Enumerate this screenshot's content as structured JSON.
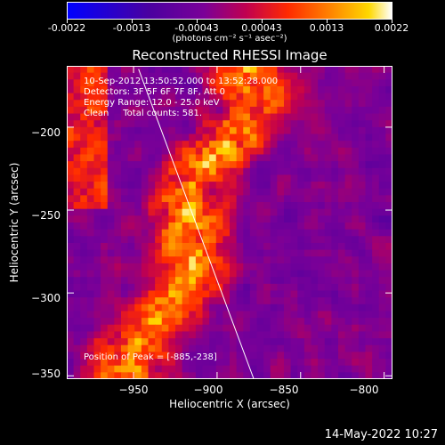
{
  "colorbar": {
    "ticks": [
      "-0.0022",
      "-0.0013",
      "-0.00043",
      "0.00043",
      "0.0013",
      "0.0022"
    ],
    "units": "(photons cm⁻² s⁻¹ asec⁻²)",
    "colors": [
      "#0000ff",
      "#400090",
      "#7000a0",
      "#c00060",
      "#ff2000",
      "#ff8000",
      "#ffd000",
      "#ffffff"
    ]
  },
  "chart_data": {
    "type": "heatmap",
    "title": "Reconstructed RHESSI Image",
    "xlabel": "Heliocentric X (arcsec)",
    "ylabel": "Heliocentric Y (arcsec)",
    "xlim": [
      -990,
      -795
    ],
    "ylim": [
      -352,
      -163
    ],
    "xticks": [
      -950,
      -900,
      -850,
      -800
    ],
    "yticks": [
      -200,
      -250,
      -300,
      -350
    ],
    "xtick_labels": [
      "−950",
      "−900",
      "−850",
      "−800"
    ],
    "ytick_labels": [
      "−200",
      "−250",
      "−300",
      "−350"
    ],
    "value_range": [
      -0.0022,
      0.0022
    ],
    "annotations": {
      "line1": "10-Sep-2012 13:50:52.000 to 13:52:28.000",
      "line2": "Detectors: 3F 5F 6F 7F 8F, Att 0",
      "line3": "Energy Range: 12.0 - 25.0 keV",
      "line4": "Clean     Total counts: 581.",
      "peak": "Position of Peak = [-885,-238]"
    },
    "limb_line": [
      [
        -947,
        -165
      ],
      [
        -878,
        -352
      ]
    ]
  },
  "timestamp": "14-May-2022 10:27"
}
